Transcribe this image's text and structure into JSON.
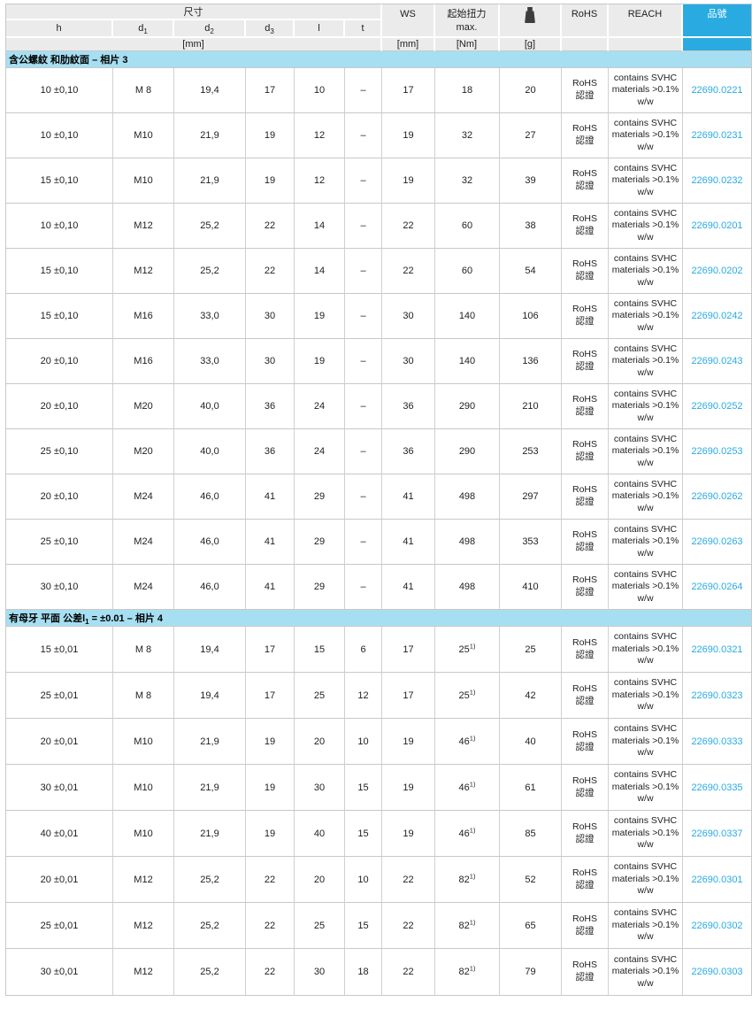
{
  "table": {
    "header": {
      "dim_group_label": "尺寸",
      "dim_columns": [
        {
          "base": "h",
          "sub": ""
        },
        {
          "base": "d",
          "sub": "1"
        },
        {
          "base": "d",
          "sub": "2"
        },
        {
          "base": "d",
          "sub": "3"
        },
        {
          "base": "l",
          "sub": ""
        },
        {
          "base": "t",
          "sub": ""
        }
      ],
      "dim_unit": "[mm]",
      "ws_label": "WS",
      "ws_unit": "[mm]",
      "torque_label": "起始扭力",
      "torque_label_line2": "max.",
      "torque_unit": "[Nm]",
      "weight_icon": "weight-icon",
      "weight_unit": "[g]",
      "rohs_label": "RoHS",
      "reach_label": "REACH",
      "part_label": "品號"
    },
    "shared_cells": {
      "rohs_line1": "RoHS",
      "rohs_line2": "認證",
      "reach_text": "contains SVHC materials >0.1% w/w"
    },
    "sections": [
      {
        "title_pre": "含公螺紋 和肋紋面 – 相片 3",
        "title_sub": "",
        "title_post": "",
        "rows": [
          {
            "h": "10 ±0,10",
            "d1": "M 8",
            "d2": "19,4",
            "d3": "17",
            "l": "10",
            "t": "–",
            "ws": "17",
            "torque": "18",
            "torque_sup": "",
            "weight": "20",
            "part": "22690.0221"
          },
          {
            "h": "10 ±0,10",
            "d1": "M10",
            "d2": "21,9",
            "d3": "19",
            "l": "12",
            "t": "–",
            "ws": "19",
            "torque": "32",
            "torque_sup": "",
            "weight": "27",
            "part": "22690.0231"
          },
          {
            "h": "15 ±0,10",
            "d1": "M10",
            "d2": "21,9",
            "d3": "19",
            "l": "12",
            "t": "–",
            "ws": "19",
            "torque": "32",
            "torque_sup": "",
            "weight": "39",
            "part": "22690.0232"
          },
          {
            "h": "10 ±0,10",
            "d1": "M12",
            "d2": "25,2",
            "d3": "22",
            "l": "14",
            "t": "–",
            "ws": "22",
            "torque": "60",
            "torque_sup": "",
            "weight": "38",
            "part": "22690.0201"
          },
          {
            "h": "15 ±0,10",
            "d1": "M12",
            "d2": "25,2",
            "d3": "22",
            "l": "14",
            "t": "–",
            "ws": "22",
            "torque": "60",
            "torque_sup": "",
            "weight": "54",
            "part": "22690.0202"
          },
          {
            "h": "15 ±0,10",
            "d1": "M16",
            "d2": "33,0",
            "d3": "30",
            "l": "19",
            "t": "–",
            "ws": "30",
            "torque": "140",
            "torque_sup": "",
            "weight": "106",
            "part": "22690.0242"
          },
          {
            "h": "20 ±0,10",
            "d1": "M16",
            "d2": "33,0",
            "d3": "30",
            "l": "19",
            "t": "–",
            "ws": "30",
            "torque": "140",
            "torque_sup": "",
            "weight": "136",
            "part": "22690.0243"
          },
          {
            "h": "20 ±0,10",
            "d1": "M20",
            "d2": "40,0",
            "d3": "36",
            "l": "24",
            "t": "–",
            "ws": "36",
            "torque": "290",
            "torque_sup": "",
            "weight": "210",
            "part": "22690.0252"
          },
          {
            "h": "25 ±0,10",
            "d1": "M20",
            "d2": "40,0",
            "d3": "36",
            "l": "24",
            "t": "–",
            "ws": "36",
            "torque": "290",
            "torque_sup": "",
            "weight": "253",
            "part": "22690.0253"
          },
          {
            "h": "20 ±0,10",
            "d1": "M24",
            "d2": "46,0",
            "d3": "41",
            "l": "29",
            "t": "–",
            "ws": "41",
            "torque": "498",
            "torque_sup": "",
            "weight": "297",
            "part": "22690.0262"
          },
          {
            "h": "25 ±0,10",
            "d1": "M24",
            "d2": "46,0",
            "d3": "41",
            "l": "29",
            "t": "–",
            "ws": "41",
            "torque": "498",
            "torque_sup": "",
            "weight": "353",
            "part": "22690.0263"
          },
          {
            "h": "30 ±0,10",
            "d1": "M24",
            "d2": "46,0",
            "d3": "41",
            "l": "29",
            "t": "–",
            "ws": "41",
            "torque": "498",
            "torque_sup": "",
            "weight": "410",
            "part": "22690.0264"
          }
        ]
      },
      {
        "title_pre": "有母牙 平面 公差l",
        "title_sub": "1",
        "title_post": " = ±0.01 – 相片 4",
        "rows": [
          {
            "h": "15 ±0,01",
            "d1": "M 8",
            "d2": "19,4",
            "d3": "17",
            "l": "15",
            "t": "6",
            "ws": "17",
            "torque": "25",
            "torque_sup": "1)",
            "weight": "25",
            "part": "22690.0321"
          },
          {
            "h": "25 ±0,01",
            "d1": "M 8",
            "d2": "19,4",
            "d3": "17",
            "l": "25",
            "t": "12",
            "ws": "17",
            "torque": "25",
            "torque_sup": "1)",
            "weight": "42",
            "part": "22690.0323"
          },
          {
            "h": "20 ±0,01",
            "d1": "M10",
            "d2": "21,9",
            "d3": "19",
            "l": "20",
            "t": "10",
            "ws": "19",
            "torque": "46",
            "torque_sup": "1)",
            "weight": "40",
            "part": "22690.0333"
          },
          {
            "h": "30 ±0,01",
            "d1": "M10",
            "d2": "21,9",
            "d3": "19",
            "l": "30",
            "t": "15",
            "ws": "19",
            "torque": "46",
            "torque_sup": "1)",
            "weight": "61",
            "part": "22690.0335"
          },
          {
            "h": "40 ±0,01",
            "d1": "M10",
            "d2": "21,9",
            "d3": "19",
            "l": "40",
            "t": "15",
            "ws": "19",
            "torque": "46",
            "torque_sup": "1)",
            "weight": "85",
            "part": "22690.0337"
          },
          {
            "h": "20 ±0,01",
            "d1": "M12",
            "d2": "25,2",
            "d3": "22",
            "l": "20",
            "t": "10",
            "ws": "22",
            "torque": "82",
            "torque_sup": "1)",
            "weight": "52",
            "part": "22690.0301"
          },
          {
            "h": "25 ±0,01",
            "d1": "M12",
            "d2": "25,2",
            "d3": "22",
            "l": "25",
            "t": "15",
            "ws": "22",
            "torque": "82",
            "torque_sup": "1)",
            "weight": "65",
            "part": "22690.0302"
          },
          {
            "h": "30 ±0,01",
            "d1": "M12",
            "d2": "25,2",
            "d3": "22",
            "l": "30",
            "t": "18",
            "ws": "22",
            "torque": "82",
            "torque_sup": "1)",
            "weight": "79",
            "part": "22690.0303"
          }
        ]
      }
    ]
  },
  "colors": {
    "accent_cyan": "#29ABE2",
    "section_band_blue": "#A6DFF2",
    "part_number_text": "#29ABE2",
    "header_gray": "#EBEBEB",
    "grid_line": "#C8C8C8",
    "weight_icon_fill": "#3D3D3D"
  }
}
